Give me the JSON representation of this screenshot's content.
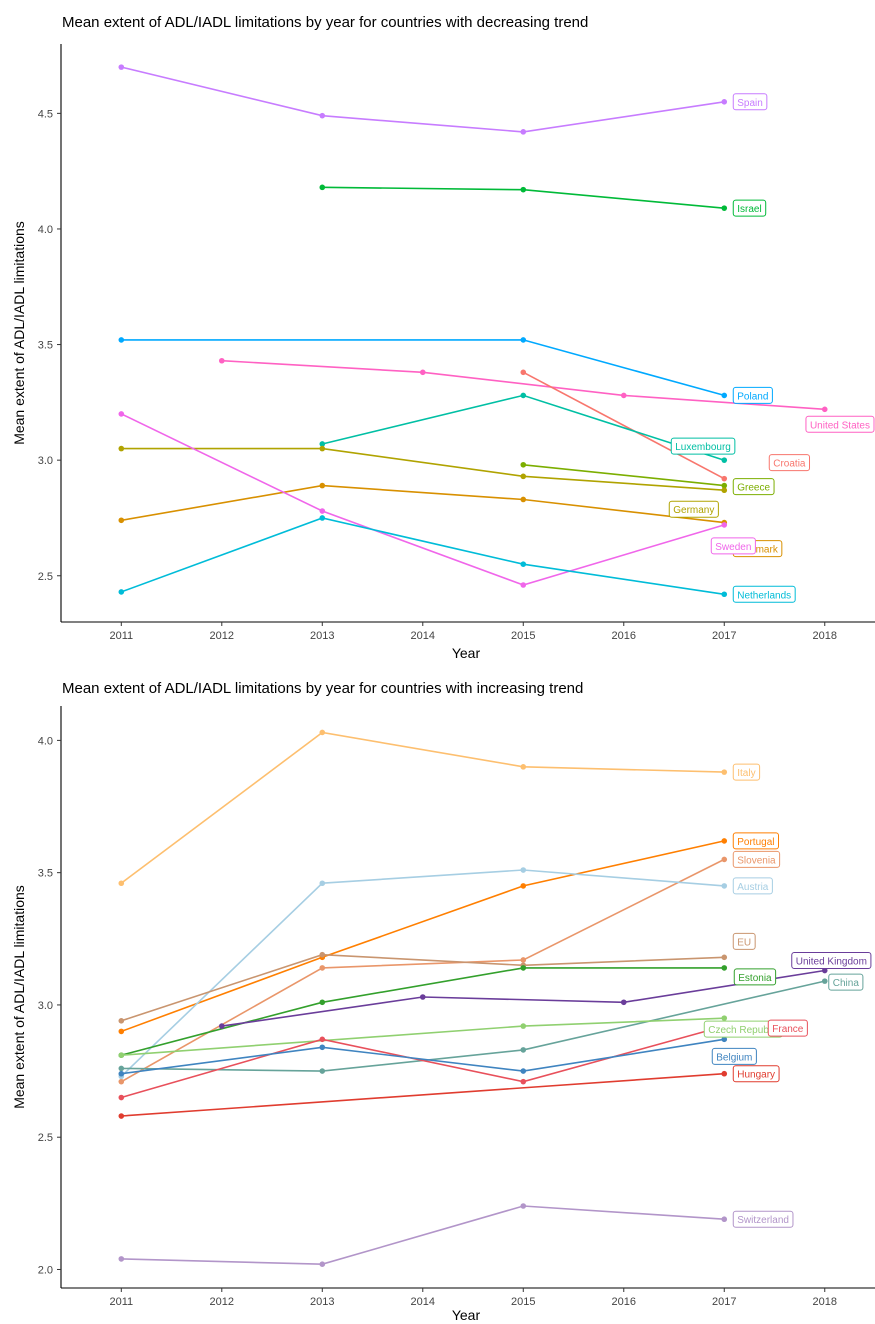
{
  "chart_data": [
    {
      "type": "line",
      "title": "Mean extent of ADL/IADL limitations by year for countries with decreasing trend",
      "xlabel": "Year",
      "ylabel": "Mean extent of ADL/IADL limitations",
      "xlim": [
        2010.4,
        2018.5
      ],
      "ylim": [
        2.3,
        4.8
      ],
      "xticks": [
        2011,
        2012,
        2013,
        2014,
        2015,
        2016,
        2017,
        2018
      ],
      "yticks": [
        2.5,
        3.0,
        3.5,
        4.0,
        4.5
      ],
      "grid": false,
      "legend": "none (direct labels)",
      "series": [
        {
          "name": "Spain",
          "color": "#C77CFF",
          "x": [
            2011,
            2013,
            2015,
            2017
          ],
          "y": [
            4.7,
            4.49,
            4.42,
            4.55
          ]
        },
        {
          "name": "Israel",
          "color": "#00BA38",
          "x": [
            2013,
            2015,
            2017
          ],
          "y": [
            4.18,
            4.17,
            4.09
          ]
        },
        {
          "name": "Poland",
          "color": "#00A9FF",
          "x": [
            2011,
            2015,
            2017
          ],
          "y": [
            3.52,
            3.52,
            3.28
          ]
        },
        {
          "name": "United States",
          "color": "#FF61C3",
          "x": [
            2012,
            2014,
            2016,
            2018
          ],
          "y": [
            3.43,
            3.38,
            3.28,
            3.22
          ]
        },
        {
          "name": "Croatia",
          "color": "#F8766D",
          "x": [
            2015,
            2017
          ],
          "y": [
            3.38,
            2.92
          ]
        },
        {
          "name": "Luxembourg",
          "color": "#00BFA4",
          "x": [
            2013,
            2015,
            2017
          ],
          "y": [
            3.07,
            3.28,
            3.0
          ]
        },
        {
          "name": "Greece",
          "color": "#7CAE00",
          "x": [
            2015,
            2017
          ],
          "y": [
            2.98,
            2.89
          ]
        },
        {
          "name": "Germany",
          "color": "#B0A300",
          "x": [
            2011,
            2013,
            2015,
            2017
          ],
          "y": [
            3.05,
            3.05,
            2.93,
            2.87
          ]
        },
        {
          "name": "Denmark",
          "color": "#D89000",
          "x": [
            2011,
            2013,
            2015,
            2017
          ],
          "y": [
            2.74,
            2.89,
            2.83,
            2.73
          ]
        },
        {
          "name": "Sweden",
          "color": "#F066EA",
          "x": [
            2011,
            2013,
            2015,
            2017
          ],
          "y": [
            3.2,
            2.78,
            2.46,
            2.72
          ]
        },
        {
          "name": "Netherlands",
          "color": "#00BCD8",
          "x": [
            2011,
            2013,
            2015,
            2017
          ],
          "y": [
            2.43,
            2.75,
            2.55,
            2.42
          ]
        }
      ]
    },
    {
      "type": "line",
      "title": "Mean extent of ADL/IADL limitations by year for countries with increasing trend",
      "xlabel": "Year",
      "ylabel": "Mean extent of ADL/IADL limitations",
      "xlim": [
        2010.4,
        2018.5
      ],
      "ylim": [
        1.93,
        4.13
      ],
      "xticks": [
        2011,
        2012,
        2013,
        2014,
        2015,
        2016,
        2017,
        2018
      ],
      "yticks": [
        2.0,
        2.5,
        3.0,
        3.5,
        4.0
      ],
      "grid": false,
      "legend": "none (direct labels)",
      "series": [
        {
          "name": "Italy",
          "color": "#FDBF6F",
          "x": [
            2011,
            2013,
            2015,
            2017
          ],
          "y": [
            3.46,
            4.03,
            3.9,
            3.88
          ]
        },
        {
          "name": "Portugal",
          "color": "#FF7F00",
          "x": [
            2011,
            2013,
            2015,
            2017
          ],
          "y": [
            2.9,
            3.18,
            3.45,
            3.62
          ]
        },
        {
          "name": "Slovenia",
          "color": "#E9966A",
          "x": [
            2011,
            2013,
            2015,
            2017
          ],
          "y": [
            2.71,
            3.14,
            3.17,
            3.55
          ]
        },
        {
          "name": "Austria",
          "color": "#A6CEE3",
          "x": [
            2011,
            2013,
            2015,
            2017
          ],
          "y": [
            2.73,
            3.46,
            3.51,
            3.45
          ]
        },
        {
          "name": "EU",
          "color": "#C9956F",
          "x": [
            2011,
            2013,
            2015,
            2017
          ],
          "y": [
            2.94,
            3.19,
            3.15,
            3.18
          ]
        },
        {
          "name": "Estonia",
          "color": "#33A02C",
          "x": [
            2011,
            2013,
            2015,
            2017
          ],
          "y": [
            2.81,
            3.01,
            3.14,
            3.14
          ]
        },
        {
          "name": "United Kingdom",
          "color": "#6A3D9A",
          "x": [
            2012,
            2014,
            2016,
            2018
          ],
          "y": [
            2.92,
            3.03,
            3.01,
            3.13
          ]
        },
        {
          "name": "China",
          "color": "#66A39A",
          "x": [
            2011,
            2013,
            2015,
            2018
          ],
          "y": [
            2.76,
            2.75,
            2.83,
            3.09
          ]
        },
        {
          "name": "Czech Republic",
          "color": "#90D070",
          "x": [
            2011,
            2015,
            2017
          ],
          "y": [
            2.81,
            2.92,
            2.95
          ]
        },
        {
          "name": "France",
          "color": "#E8505B",
          "x": [
            2011,
            2013,
            2015,
            2017
          ],
          "y": [
            2.65,
            2.87,
            2.71,
            2.92
          ]
        },
        {
          "name": "Belgium",
          "color": "#3F84C0",
          "x": [
            2011,
            2013,
            2015,
            2017
          ],
          "y": [
            2.74,
            2.84,
            2.75,
            2.87
          ]
        },
        {
          "name": "Hungary",
          "color": "#E03C2F",
          "x": [
            2011,
            2017
          ],
          "y": [
            2.58,
            2.74
          ]
        },
        {
          "name": "Switzerland",
          "color": "#B295C9",
          "x": [
            2011,
            2013,
            2015,
            2017
          ],
          "y": [
            2.04,
            2.02,
            2.24,
            2.19
          ]
        }
      ]
    }
  ]
}
